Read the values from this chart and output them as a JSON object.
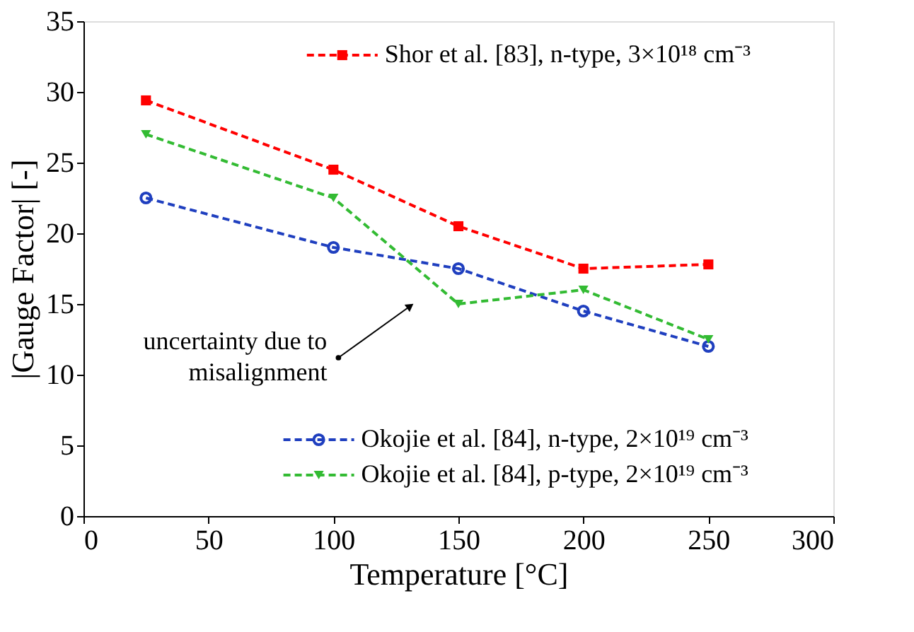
{
  "chart_data": {
    "type": "line",
    "xlabel": "Temperature [°C]",
    "ylabel": "|Gauge Factor|  [-]",
    "x": [
      25,
      100,
      150,
      200,
      250
    ],
    "series": [
      {
        "name": "Shor et al. [83], n-type, 3×10¹⁸ cm⁻³",
        "color": "#ff0000",
        "marker": "square",
        "values": [
          29.4,
          24.5,
          20.5,
          17.5,
          17.8
        ]
      },
      {
        "name": "Okojie et al. [84], n-type, 2×10¹⁹ cm⁻³",
        "color": "#1f3fbf",
        "marker": "circle",
        "values": [
          22.5,
          19,
          17.5,
          14.5,
          12
        ]
      },
      {
        "name": "Okojie et al. [84], p-type, 2×10¹⁹ cm⁻³",
        "color": "#33bb33",
        "marker": "triangle",
        "values": [
          27,
          22.5,
          15,
          16,
          12.5
        ]
      }
    ],
    "annotations": [
      "uncertainty due to\nmisalignment"
    ],
    "xlim": [
      0,
      300
    ],
    "xticks": [
      0,
      50,
      100,
      150,
      200,
      250,
      300
    ],
    "ylim": [
      0,
      35
    ],
    "yticks": [
      0,
      5,
      10,
      15,
      20,
      25,
      30,
      35
    ],
    "grid": false,
    "legend": "right",
    "line_style": "dashed"
  }
}
